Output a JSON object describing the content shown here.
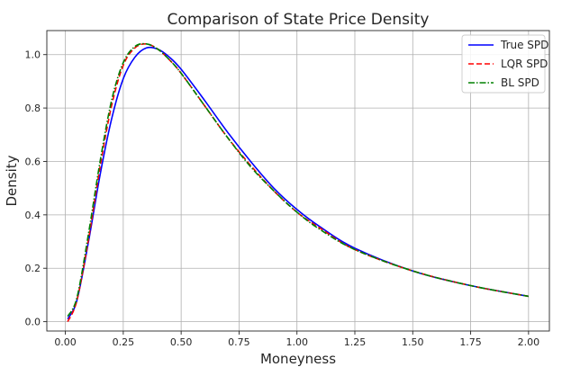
{
  "chart_data": {
    "type": "line",
    "title": "Comparison of State Price Density",
    "xlabel": "Moneyness",
    "ylabel": "Density",
    "xlim": [
      -0.08,
      2.09
    ],
    "ylim": [
      -0.035,
      1.09
    ],
    "xticks": [
      0.0,
      0.25,
      0.5,
      0.75,
      1.0,
      1.25,
      1.5,
      1.75,
      2.0
    ],
    "xtick_labels": [
      "0.00",
      "0.25",
      "0.50",
      "0.75",
      "1.00",
      "1.25",
      "1.50",
      "1.75",
      "2.00"
    ],
    "yticks": [
      0.0,
      0.2,
      0.4,
      0.6,
      0.8,
      1.0
    ],
    "ytick_labels": [
      "0.0",
      "0.2",
      "0.4",
      "0.6",
      "0.8",
      "1.0"
    ],
    "grid": true,
    "legend_position": "top-right",
    "series": [
      {
        "name": "True SPD",
        "color": "#0000ff",
        "style": "solid",
        "x": [
          0.01,
          0.05,
          0.1,
          0.15,
          0.2,
          0.25,
          0.3,
          0.35,
          0.4,
          0.45,
          0.5,
          0.6,
          0.7,
          0.8,
          0.9,
          1.0,
          1.1,
          1.25,
          1.5,
          1.75,
          2.0
        ],
        "y": [
          0.01,
          0.08,
          0.3,
          0.55,
          0.76,
          0.91,
          0.99,
          1.025,
          1.02,
          0.99,
          0.945,
          0.83,
          0.71,
          0.6,
          0.5,
          0.42,
          0.355,
          0.275,
          0.19,
          0.135,
          0.095
        ]
      },
      {
        "name": "LQR SPD",
        "color": "#ff0000",
        "style": "dashed",
        "x": [
          0.01,
          0.05,
          0.1,
          0.15,
          0.2,
          0.25,
          0.3,
          0.35,
          0.4,
          0.45,
          0.5,
          0.6,
          0.7,
          0.8,
          0.9,
          1.0,
          1.1,
          1.25,
          1.5,
          1.75,
          2.0
        ],
        "y": [
          0.0,
          0.08,
          0.31,
          0.58,
          0.81,
          0.96,
          1.025,
          1.04,
          1.02,
          0.98,
          0.93,
          0.81,
          0.69,
          0.585,
          0.49,
          0.41,
          0.35,
          0.27,
          0.19,
          0.135,
          0.095
        ]
      },
      {
        "name": "BL SPD",
        "color": "#008000",
        "style": "dashdot",
        "x": [
          0.01,
          0.05,
          0.1,
          0.15,
          0.2,
          0.25,
          0.3,
          0.35,
          0.4,
          0.45,
          0.5,
          0.6,
          0.7,
          0.8,
          0.9,
          1.0,
          1.1,
          1.25,
          1.5,
          1.75,
          2.0
        ],
        "y": [
          0.02,
          0.09,
          0.33,
          0.6,
          0.83,
          0.97,
          1.03,
          1.04,
          1.02,
          0.98,
          0.93,
          0.81,
          0.69,
          0.58,
          0.49,
          0.41,
          0.345,
          0.27,
          0.19,
          0.135,
          0.095
        ]
      }
    ]
  }
}
